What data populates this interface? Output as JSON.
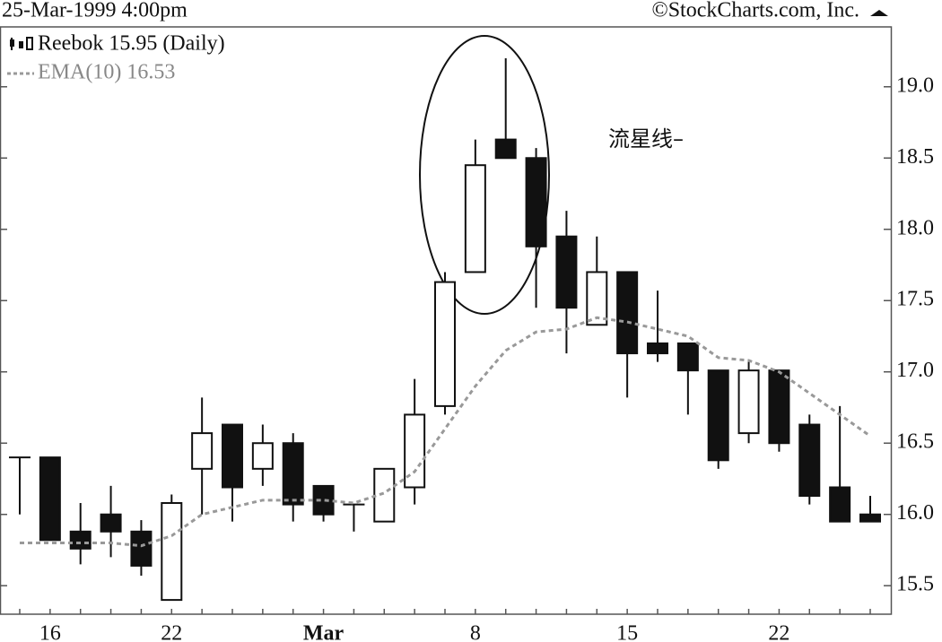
{
  "chart_data": {
    "type": "candlestick",
    "title": "25-Mar-1999 4:00pm",
    "subtitle": "©StockCharts.com, Inc.",
    "annotation": "流星线–",
    "categories": [
      null,
      "16",
      null,
      null,
      null,
      "22",
      null,
      null,
      null,
      null,
      "Mar",
      null,
      null,
      null,
      null,
      "8",
      null,
      null,
      null,
      null,
      "15",
      null,
      null,
      null,
      null,
      "22",
      null,
      null,
      null
    ],
    "series": [
      {
        "name": "Reebok 15.95 (Daily)",
        "color": "#111111",
        "open": [
          16.4,
          16.4,
          15.88,
          16.0,
          15.88,
          15.4,
          16.32,
          16.63,
          16.32,
          16.5,
          16.2,
          16.07,
          15.95,
          16.19,
          16.76,
          17.7,
          18.63,
          18.5,
          17.95,
          17.33,
          17.7,
          17.2,
          17.2,
          17.01,
          16.57,
          17.01,
          16.63,
          16.19,
          16.0
        ],
        "high": [
          16.4,
          16.4,
          16.08,
          16.2,
          15.96,
          16.14,
          16.82,
          16.63,
          16.63,
          16.57,
          16.2,
          16.07,
          16.32,
          16.95,
          17.7,
          18.63,
          19.2,
          18.57,
          18.13,
          17.95,
          17.7,
          17.57,
          17.2,
          17.01,
          17.07,
          17.01,
          16.7,
          16.76,
          16.13
        ],
        "low": [
          16.0,
          15.82,
          15.65,
          15.7,
          15.57,
          15.4,
          16.0,
          15.95,
          16.2,
          15.95,
          15.95,
          15.88,
          15.95,
          16.07,
          16.7,
          17.7,
          18.5,
          17.45,
          17.13,
          17.33,
          16.82,
          17.07,
          16.7,
          16.32,
          16.5,
          16.44,
          16.07,
          15.95,
          15.95
        ],
        "close": [
          16.4,
          15.82,
          15.76,
          15.88,
          15.64,
          16.08,
          16.57,
          16.19,
          16.5,
          16.07,
          16.0,
          16.07,
          16.32,
          16.7,
          17.63,
          18.45,
          18.5,
          17.88,
          17.45,
          17.7,
          17.13,
          17.13,
          17.01,
          16.38,
          17.01,
          16.5,
          16.13,
          15.95,
          15.95
        ]
      },
      {
        "name": "EMA(10) 16.53",
        "color": "#999999",
        "dashed": true,
        "values": [
          15.8,
          15.8,
          15.8,
          15.8,
          15.78,
          15.85,
          16.0,
          16.05,
          16.1,
          16.1,
          16.1,
          16.08,
          16.15,
          16.3,
          16.6,
          16.9,
          17.15,
          17.28,
          17.3,
          17.38,
          17.35,
          17.3,
          17.25,
          17.1,
          17.08,
          17.0,
          16.85,
          16.7,
          16.55
        ]
      }
    ],
    "ylim": [
      15.3,
      19.42
    ],
    "yticks": [
      {
        "value": 15.5,
        "label": "15.5"
      },
      {
        "value": 16,
        "label": "16.0"
      },
      {
        "value": 16.5,
        "label": "16.5"
      },
      {
        "value": 17,
        "label": "17.0"
      },
      {
        "value": 17.5,
        "label": "17.5"
      },
      {
        "value": 18,
        "label": "18.0"
      },
      {
        "value": 18.5,
        "label": "18.5"
      },
      {
        "value": 19,
        "label": "19.0"
      }
    ]
  }
}
